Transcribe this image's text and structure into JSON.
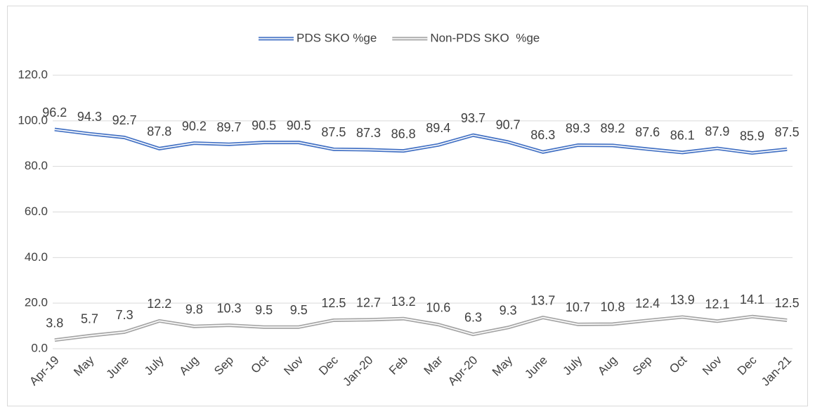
{
  "chart_data": {
    "type": "line",
    "categories": [
      "Apr-19",
      "May",
      "June",
      "July",
      "Aug",
      "Sep",
      "Oct",
      "Nov",
      "Dec",
      "Jan-20",
      "Feb",
      "Mar",
      "Apr-20",
      "May",
      "June",
      "July",
      "Aug",
      "Sep",
      "Oct",
      "Nov",
      "Dec",
      "Jan-21"
    ],
    "series": [
      {
        "name": "PDS SKO %ge",
        "color": "#4472c4",
        "values": [
          96.2,
          94.3,
          92.7,
          87.8,
          90.2,
          89.7,
          90.5,
          90.5,
          87.5,
          87.3,
          86.8,
          89.4,
          93.7,
          90.7,
          86.3,
          89.3,
          89.2,
          87.6,
          86.1,
          87.9,
          85.9,
          87.5
        ]
      },
      {
        "name": "Non-PDS SKO  %ge",
        "color": "#a5a5a5",
        "values": [
          3.8,
          5.7,
          7.3,
          12.2,
          9.8,
          10.3,
          9.5,
          9.5,
          12.5,
          12.7,
          13.2,
          10.6,
          6.3,
          9.3,
          13.7,
          10.7,
          10.8,
          12.4,
          13.9,
          12.1,
          14.1,
          12.5
        ]
      }
    ],
    "ylim": [
      0,
      120
    ],
    "yticks": [
      {
        "value": 0,
        "label": "0.0"
      },
      {
        "value": 20,
        "label": "20.0"
      },
      {
        "value": 40,
        "label": "40.0"
      },
      {
        "value": 60,
        "label": "60.0"
      },
      {
        "value": 80,
        "label": "80.0"
      },
      {
        "value": 100,
        "label": "100.0"
      },
      {
        "value": 120,
        "label": "120.0"
      }
    ],
    "grid": true,
    "legend": "top"
  }
}
